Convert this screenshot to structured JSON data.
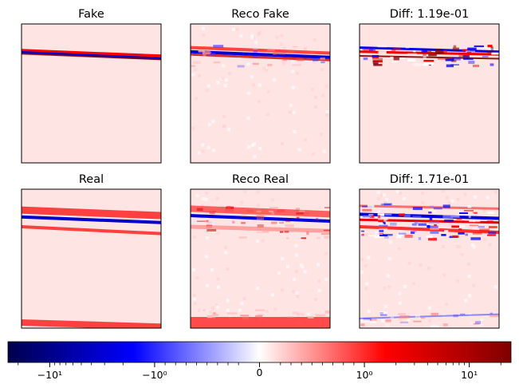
{
  "chart_data": {
    "type": "heatmap",
    "panels": [
      {
        "title": "Fake",
        "kind": "fake"
      },
      {
        "title": "Reco Fake",
        "kind": "reco_fake"
      },
      {
        "title": "Diff: 1.19e-01",
        "kind": "diff_fake"
      },
      {
        "title": "Real",
        "kind": "real"
      },
      {
        "title": "Reco Real",
        "kind": "reco_real"
      },
      {
        "title": "Diff: 1.71e-01",
        "kind": "diff_real"
      }
    ],
    "colormap": "seismic",
    "colorbar": {
      "scale": "symlog",
      "range": [
        -25,
        25
      ],
      "ticks": [
        {
          "value": -10,
          "label": "−10¹"
        },
        {
          "value": -1,
          "label": "−10⁰"
        },
        {
          "value": 0,
          "label": "0"
        },
        {
          "value": 1,
          "label": "10⁰"
        },
        {
          "value": 10,
          "label": "10¹"
        }
      ]
    },
    "axes_ticks": "hidden"
  }
}
